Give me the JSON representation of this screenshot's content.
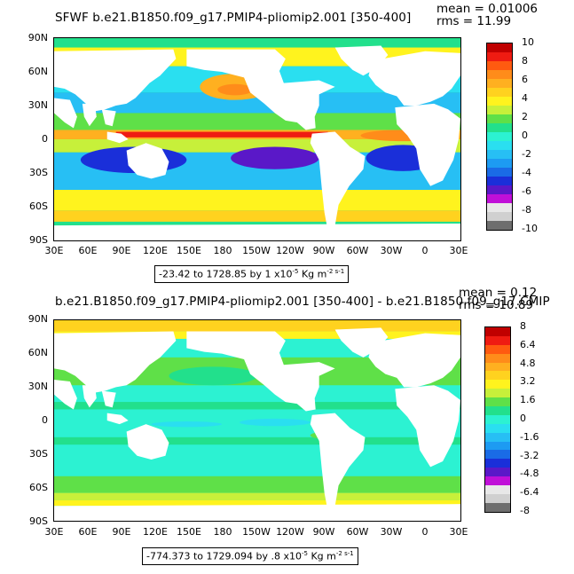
{
  "top": {
    "title": "SFWF b.e21.B1850.f09_g17.PMIP4-pliomip2.001 [350-400]",
    "mean": "mean = 0.01006",
    "rms": "rms = 11.99",
    "lat_labels": [
      "90N",
      "60N",
      "30N",
      "0",
      "30S",
      "60S",
      "90S"
    ],
    "lon_labels": [
      "30E",
      "60E",
      "90E",
      "120E",
      "150E",
      "180",
      "150W",
      "120W",
      "90W",
      "60W",
      "30W",
      "0",
      "30E"
    ],
    "range_prefix": "-23.42 to 1728.85 by 1 x10",
    "range_exp": "-5",
    "range_unit": " Kg m",
    "range_unit_exp": "-2 s-1",
    "colorbar": {
      "labels": [
        "10",
        "8",
        "6",
        "4",
        "2",
        "0",
        "-2",
        "-4",
        "-6",
        "-8",
        "-10"
      ],
      "colors": [
        "#c00000",
        "#ef1b12",
        "#ff5a10",
        "#ff8c1a",
        "#ffb020",
        "#ffd21f",
        "#fff31e",
        "#c7f03a",
        "#5fe048",
        "#22e08c",
        "#2cf2d2",
        "#2adff0",
        "#27bff4",
        "#1d9bf2",
        "#1a6be6",
        "#1a2fd9",
        "#5a18c8",
        "#c010d8",
        "#e8e8e8",
        "#d0d0d0",
        "#6e6e6e"
      ]
    }
  },
  "bottom": {
    "title": "b.e21.B1850.f09_g17.PMIP4-pliomip2.001 [350-400] - b.e21.B1850.f09_g17.CMIP",
    "mean": "mean = 0.12",
    "rms": "rms = 10.89",
    "lat_labels": [
      "90N",
      "60N",
      "30N",
      "0",
      "30S",
      "60S",
      "90S"
    ],
    "lon_labels": [
      "30E",
      "60E",
      "90E",
      "120E",
      "150E",
      "180",
      "150W",
      "120W",
      "90W",
      "60W",
      "30W",
      "0",
      "30E"
    ],
    "range_prefix": "-774.373 to 1729.094 by .8 x10",
    "range_exp": "-5",
    "range_unit": " Kg m",
    "range_unit_exp": "-2 s-1",
    "colorbar": {
      "labels": [
        "8",
        "6.4",
        "4.8",
        "3.2",
        "1.6",
        "0",
        "-1.6",
        "-3.2",
        "-4.8",
        "-6.4",
        "-8"
      ],
      "colors": [
        "#c00000",
        "#ef1b12",
        "#ff5a10",
        "#ff8c1a",
        "#ffb020",
        "#ffd21f",
        "#fff31e",
        "#c7f03a",
        "#5fe048",
        "#22e08c",
        "#2cf2d2",
        "#2adff0",
        "#27bff4",
        "#1d9bf2",
        "#1a6be6",
        "#1a2fd9",
        "#5a18c8",
        "#c010d8",
        "#e8e8e8",
        "#d0d0d0",
        "#6e6e6e"
      ]
    }
  }
}
